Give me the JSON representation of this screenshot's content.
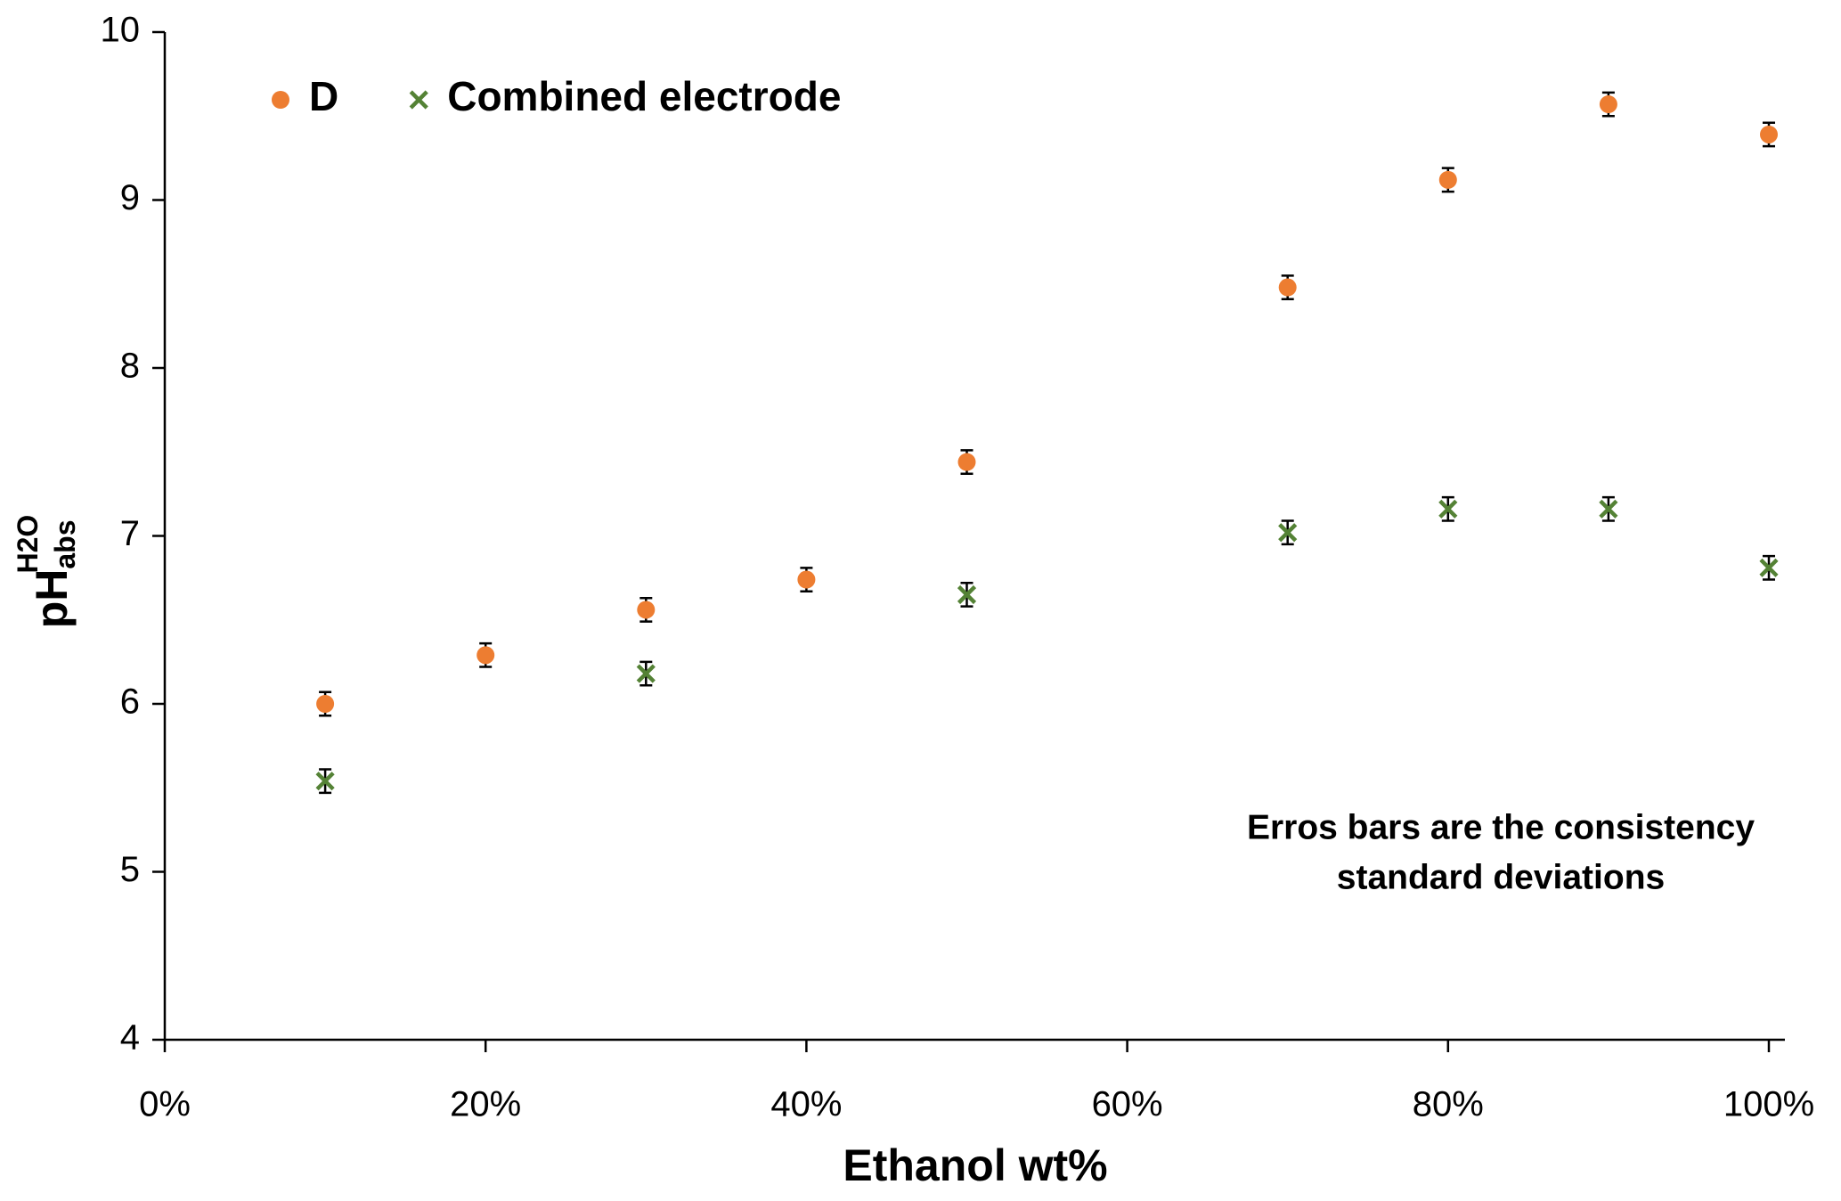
{
  "chart_data": {
    "type": "scatter",
    "x_label": "Ethanol wt%",
    "y_label": {
      "main": "pH",
      "sub": "abs",
      "sup": "H2O"
    },
    "xlim": [
      0,
      100
    ],
    "xticks": [
      {
        "value": 0,
        "label": "0%"
      },
      {
        "value": 20,
        "label": "20%"
      },
      {
        "value": 40,
        "label": "40%"
      },
      {
        "value": 60,
        "label": "60%"
      },
      {
        "value": 80,
        "label": "80%"
      },
      {
        "value": 100,
        "label": "100%"
      }
    ],
    "ylim": [
      4,
      10
    ],
    "yticks": [
      4,
      5,
      6,
      7,
      8,
      9,
      10
    ],
    "legend": "upper left",
    "annotation": [
      "Erros bars are the consistency",
      "standard deviations"
    ],
    "series": [
      {
        "name": "D",
        "color": "#ed7d31",
        "marker": "circle",
        "x": [
          10,
          20,
          30,
          40,
          50,
          70,
          80,
          90,
          100
        ],
        "values": [
          6.0,
          6.29,
          6.56,
          6.74,
          7.44,
          8.48,
          9.12,
          9.57,
          9.39
        ],
        "errors": [
          0.07,
          0.07,
          0.07,
          0.07,
          0.07,
          0.07,
          0.07,
          0.07,
          0.07
        ]
      },
      {
        "name": "Combined electrode",
        "color": "#548235",
        "marker": "x",
        "x": [
          10,
          30,
          50,
          70,
          80,
          90,
          100
        ],
        "values": [
          5.54,
          6.18,
          6.65,
          7.02,
          7.16,
          7.16,
          6.81
        ],
        "errors": [
          0.07,
          0.07,
          0.07,
          0.07,
          0.07,
          0.07,
          0.07
        ]
      }
    ]
  }
}
